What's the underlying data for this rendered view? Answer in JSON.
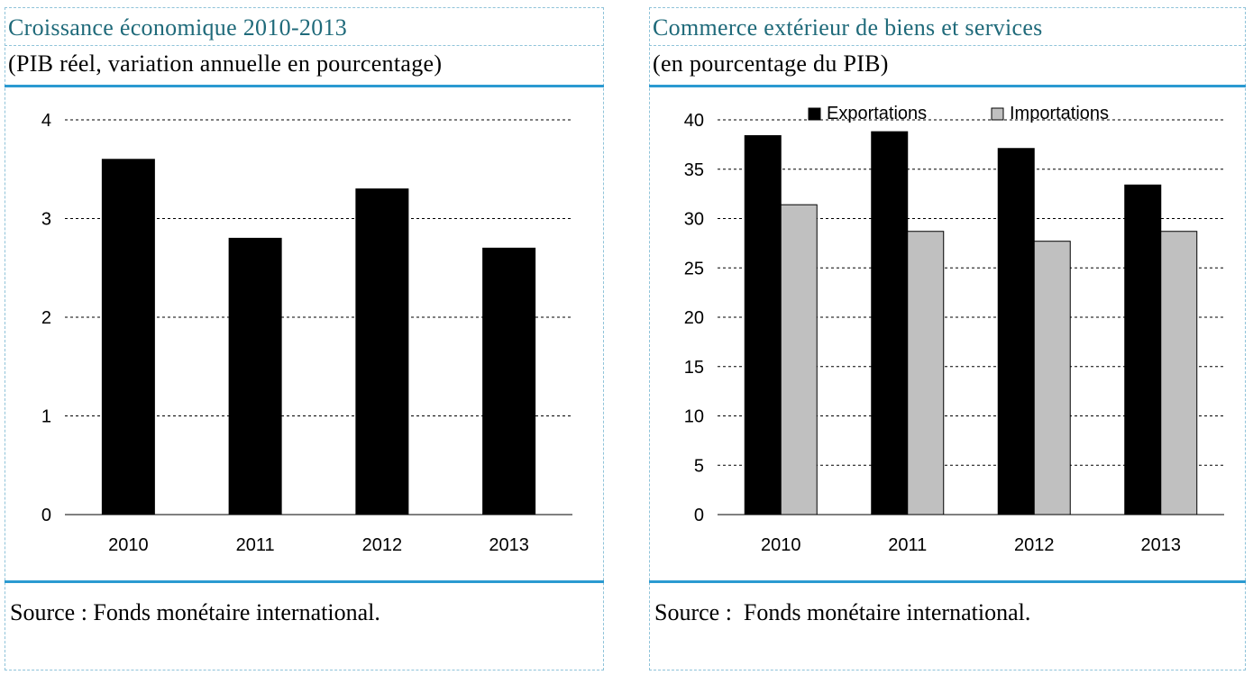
{
  "chart_data": [
    {
      "type": "bar",
      "title": "Croissance économique 2010-2013",
      "subtitle": "(PIB réel, variation annuelle en pourcentage)",
      "categories": [
        "2010",
        "2011",
        "2012",
        "2013"
      ],
      "series": [
        {
          "values": [
            3.6,
            2.8,
            3.3,
            2.7
          ],
          "color": "#000000"
        }
      ],
      "ylim": [
        0,
        4
      ],
      "yticks": [
        0,
        1,
        2,
        3,
        4
      ],
      "grid": "dashed horizontal",
      "source": "Source : Fonds monétaire international."
    },
    {
      "type": "bar",
      "title": "Commerce extérieur de biens et services",
      "subtitle": "(en pourcentage du PIB)",
      "categories": [
        "2010",
        "2011",
        "2012",
        "2013"
      ],
      "series": [
        {
          "name": "Exportations",
          "values": [
            38.4,
            38.8,
            37.1,
            33.4
          ],
          "color": "#000000"
        },
        {
          "name": "Importations",
          "values": [
            31.4,
            28.7,
            27.7,
            28.7
          ],
          "color": "#c0c0c0"
        }
      ],
      "ylim": [
        0,
        40
      ],
      "yticks": [
        0,
        5,
        10,
        15,
        20,
        25,
        30,
        35,
        40
      ],
      "grid": "dashed horizontal",
      "legend": "top",
      "source": "Source :  Fonds monétaire international."
    }
  ]
}
